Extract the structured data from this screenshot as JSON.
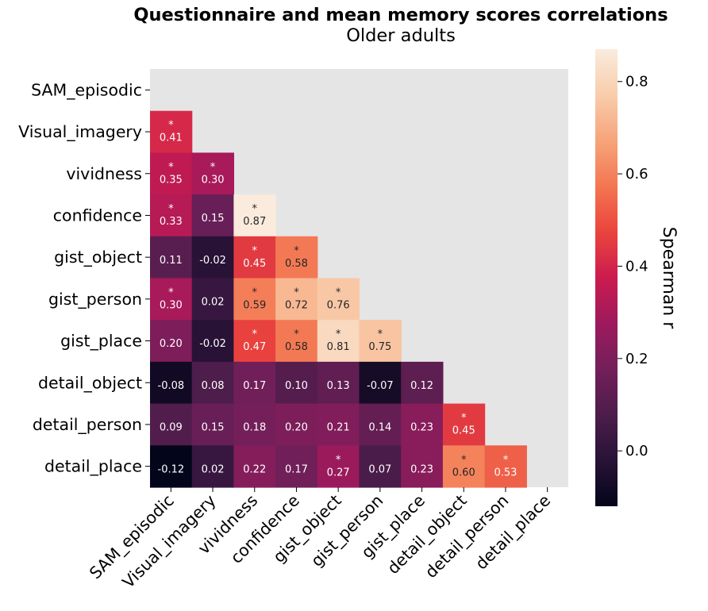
{
  "chart_data": {
    "type": "heatmap",
    "title": "Questionnaire and mean memory scores correlations",
    "subtitle": "Older adults",
    "variables": [
      "SAM_episodic",
      "Visual_imagery",
      "vividness",
      "confidence",
      "gist_object",
      "gist_person",
      "gist_place",
      "detail_object",
      "detail_person",
      "detail_place"
    ],
    "values": [
      [
        null,
        null,
        null,
        null,
        null,
        null,
        null,
        null,
        null,
        null
      ],
      [
        0.41,
        null,
        null,
        null,
        null,
        null,
        null,
        null,
        null,
        null
      ],
      [
        0.35,
        0.3,
        null,
        null,
        null,
        null,
        null,
        null,
        null,
        null
      ],
      [
        0.33,
        0.15,
        0.87,
        null,
        null,
        null,
        null,
        null,
        null,
        null
      ],
      [
        0.11,
        -0.02,
        0.45,
        0.58,
        null,
        null,
        null,
        null,
        null,
        null
      ],
      [
        0.3,
        0.02,
        0.59,
        0.72,
        0.76,
        null,
        null,
        null,
        null,
        null
      ],
      [
        0.2,
        -0.02,
        0.47,
        0.58,
        0.81,
        0.75,
        null,
        null,
        null,
        null
      ],
      [
        -0.08,
        0.08,
        0.17,
        0.1,
        0.13,
        -0.07,
        0.12,
        null,
        null,
        null
      ],
      [
        0.09,
        0.15,
        0.18,
        0.2,
        0.21,
        0.14,
        0.23,
        0.45,
        null,
        null
      ],
      [
        -0.12,
        0.02,
        0.22,
        0.17,
        0.27,
        0.07,
        0.23,
        0.6,
        0.53,
        null
      ]
    ],
    "significant": [
      [
        false,
        false,
        false,
        false,
        false,
        false,
        false,
        false,
        false,
        false
      ],
      [
        true,
        false,
        false,
        false,
        false,
        false,
        false,
        false,
        false,
        false
      ],
      [
        true,
        true,
        false,
        false,
        false,
        false,
        false,
        false,
        false,
        false
      ],
      [
        true,
        false,
        true,
        false,
        false,
        false,
        false,
        false,
        false,
        false
      ],
      [
        false,
        false,
        true,
        true,
        false,
        false,
        false,
        false,
        false,
        false
      ],
      [
        true,
        false,
        true,
        true,
        true,
        false,
        false,
        false,
        false,
        false
      ],
      [
        false,
        false,
        true,
        true,
        true,
        true,
        false,
        false,
        false,
        false
      ],
      [
        false,
        false,
        false,
        false,
        false,
        false,
        false,
        false,
        false,
        false
      ],
      [
        false,
        false,
        false,
        false,
        false,
        false,
        false,
        true,
        false,
        false
      ],
      [
        false,
        false,
        false,
        false,
        true,
        false,
        false,
        true,
        true,
        false
      ]
    ],
    "significance_marker": "*",
    "colorbar": {
      "label": "Spearman r",
      "vmin": -0.12,
      "vmax": 0.87,
      "ticks": [
        "0.0",
        "0.2",
        "0.4",
        "0.6",
        "0.8"
      ],
      "colormap": "rocket"
    },
    "mask_color": "#e5e5e5"
  }
}
